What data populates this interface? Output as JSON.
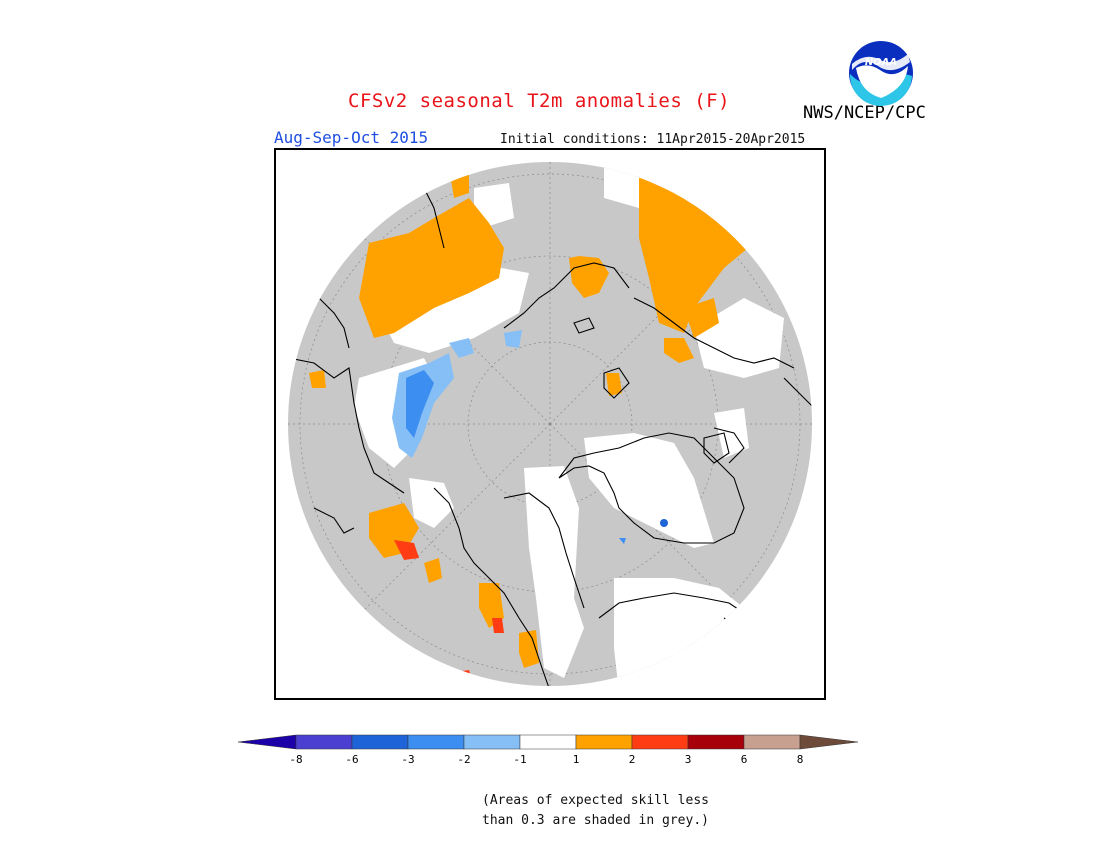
{
  "title": "CFSv2 seasonal T2m anomalies (F)",
  "season": "Aug-Sep-Oct 2015",
  "initial_conditions": "Initial conditions: 11Apr2015-20Apr2015",
  "organization": "NWS/NCEP/CPC",
  "logo_text": "NOAA",
  "note_line1": "(Areas of expected skill less",
  "note_line2": "than 0.3 are shaded in grey.)",
  "colors": {
    "title": "#e8141a",
    "season": "#1f4ee0",
    "skill_grey": "#c8c8c8",
    "land_line": "#000000"
  },
  "legend": {
    "labels": [
      "-8",
      "-6",
      "-3",
      "-2",
      "-1",
      "1",
      "2",
      "3",
      "6",
      "8"
    ],
    "bins": [
      {
        "color": "#1c00a8"
      },
      {
        "color": "#4a3fd0"
      },
      {
        "color": "#1e64d8"
      },
      {
        "color": "#3c8ef0"
      },
      {
        "color": "#86bff5"
      },
      {
        "color": "#ffffff"
      },
      {
        "color": "#ffa200"
      },
      {
        "color": "#ff3c14"
      },
      {
        "color": "#a8000a"
      },
      {
        "color": "#c8a090"
      },
      {
        "color": "#6e4a3a"
      }
    ]
  }
}
